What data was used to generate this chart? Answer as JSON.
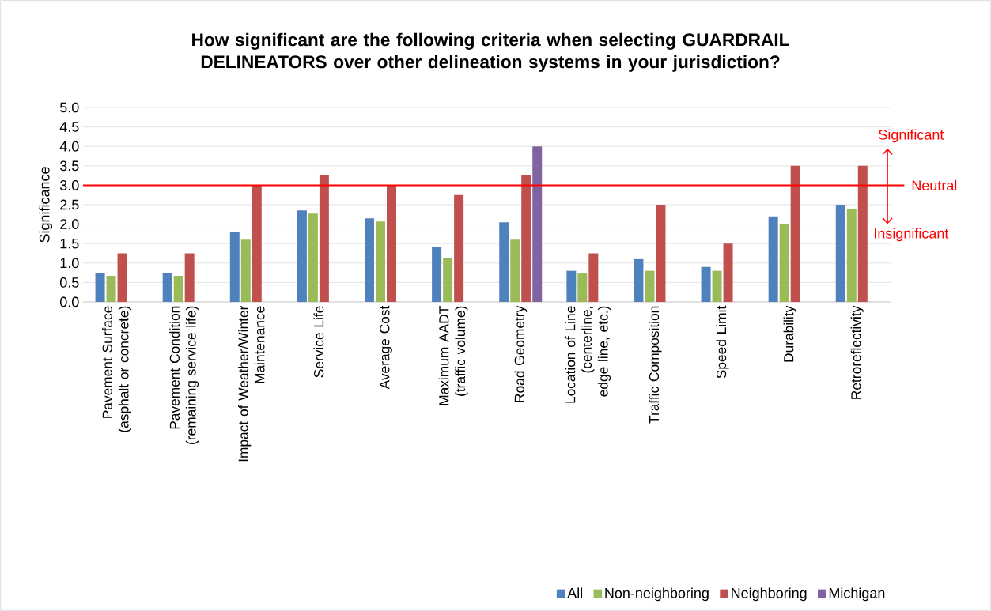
{
  "chart_data": {
    "type": "bar",
    "title": "How significant are the following criteria when selecting GUARDRAIL DELINEATORS over other delineation systems in your jurisdiction?",
    "ylabel": "Significance",
    "categories": [
      "Pavement Surface (asphalt or concrete)",
      "Pavement Condition (remaining service life)",
      "Impact of Weather/Winter Maintenance",
      "Service Life",
      "Average Cost",
      "Maximum AADT (traffic volume)",
      "Road Geometry",
      "Location of Line (centerline, edge line, etc.)",
      "Traffic Composition",
      "Speed Limit",
      "Durability",
      "Retroreflectivity"
    ],
    "series": [
      {
        "name": "All",
        "color": "#4f81bd",
        "values": [
          0.75,
          0.75,
          1.8,
          2.35,
          2.15,
          1.4,
          2.05,
          0.8,
          1.1,
          0.9,
          2.2,
          2.5
        ]
      },
      {
        "name": "Non-neighboring",
        "color": "#9bbb59",
        "values": [
          0.67,
          0.67,
          1.6,
          2.27,
          2.07,
          1.13,
          1.6,
          0.73,
          0.8,
          0.8,
          2.0,
          2.4
        ]
      },
      {
        "name": "Neighboring",
        "color": "#c0504d",
        "values": [
          1.25,
          1.25,
          3.0,
          3.25,
          3.0,
          2.75,
          3.25,
          1.25,
          2.5,
          1.5,
          3.5,
          3.5
        ]
      },
      {
        "name": "Michigan",
        "color": "#8064a2",
        "values": [
          null,
          null,
          null,
          null,
          null,
          null,
          4.0,
          null,
          null,
          null,
          null,
          null
        ]
      }
    ],
    "ylim": [
      0,
      5
    ],
    "yticks": [
      {
        "value": 0,
        "label": "0.0"
      },
      {
        "value": 0.5,
        "label": "0.5"
      },
      {
        "value": 1,
        "label": "1.0"
      },
      {
        "value": 1.5,
        "label": "1.5"
      },
      {
        "value": 2,
        "label": "2.0"
      },
      {
        "value": 2.5,
        "label": "2.5"
      },
      {
        "value": 3,
        "label": "3.0"
      },
      {
        "value": 3.5,
        "label": "3.5"
      },
      {
        "value": 4,
        "label": "4.0"
      },
      {
        "value": 4.5,
        "label": "4.5"
      },
      {
        "value": 5,
        "label": "5.0"
      }
    ],
    "grid": "y",
    "legend": "bottom right",
    "ref_lines": [
      {
        "axis": "y",
        "value": 3,
        "label": "Neutral",
        "color": "#ff0000"
      }
    ],
    "annotations": [
      "Significant",
      "Insignificant"
    ]
  }
}
